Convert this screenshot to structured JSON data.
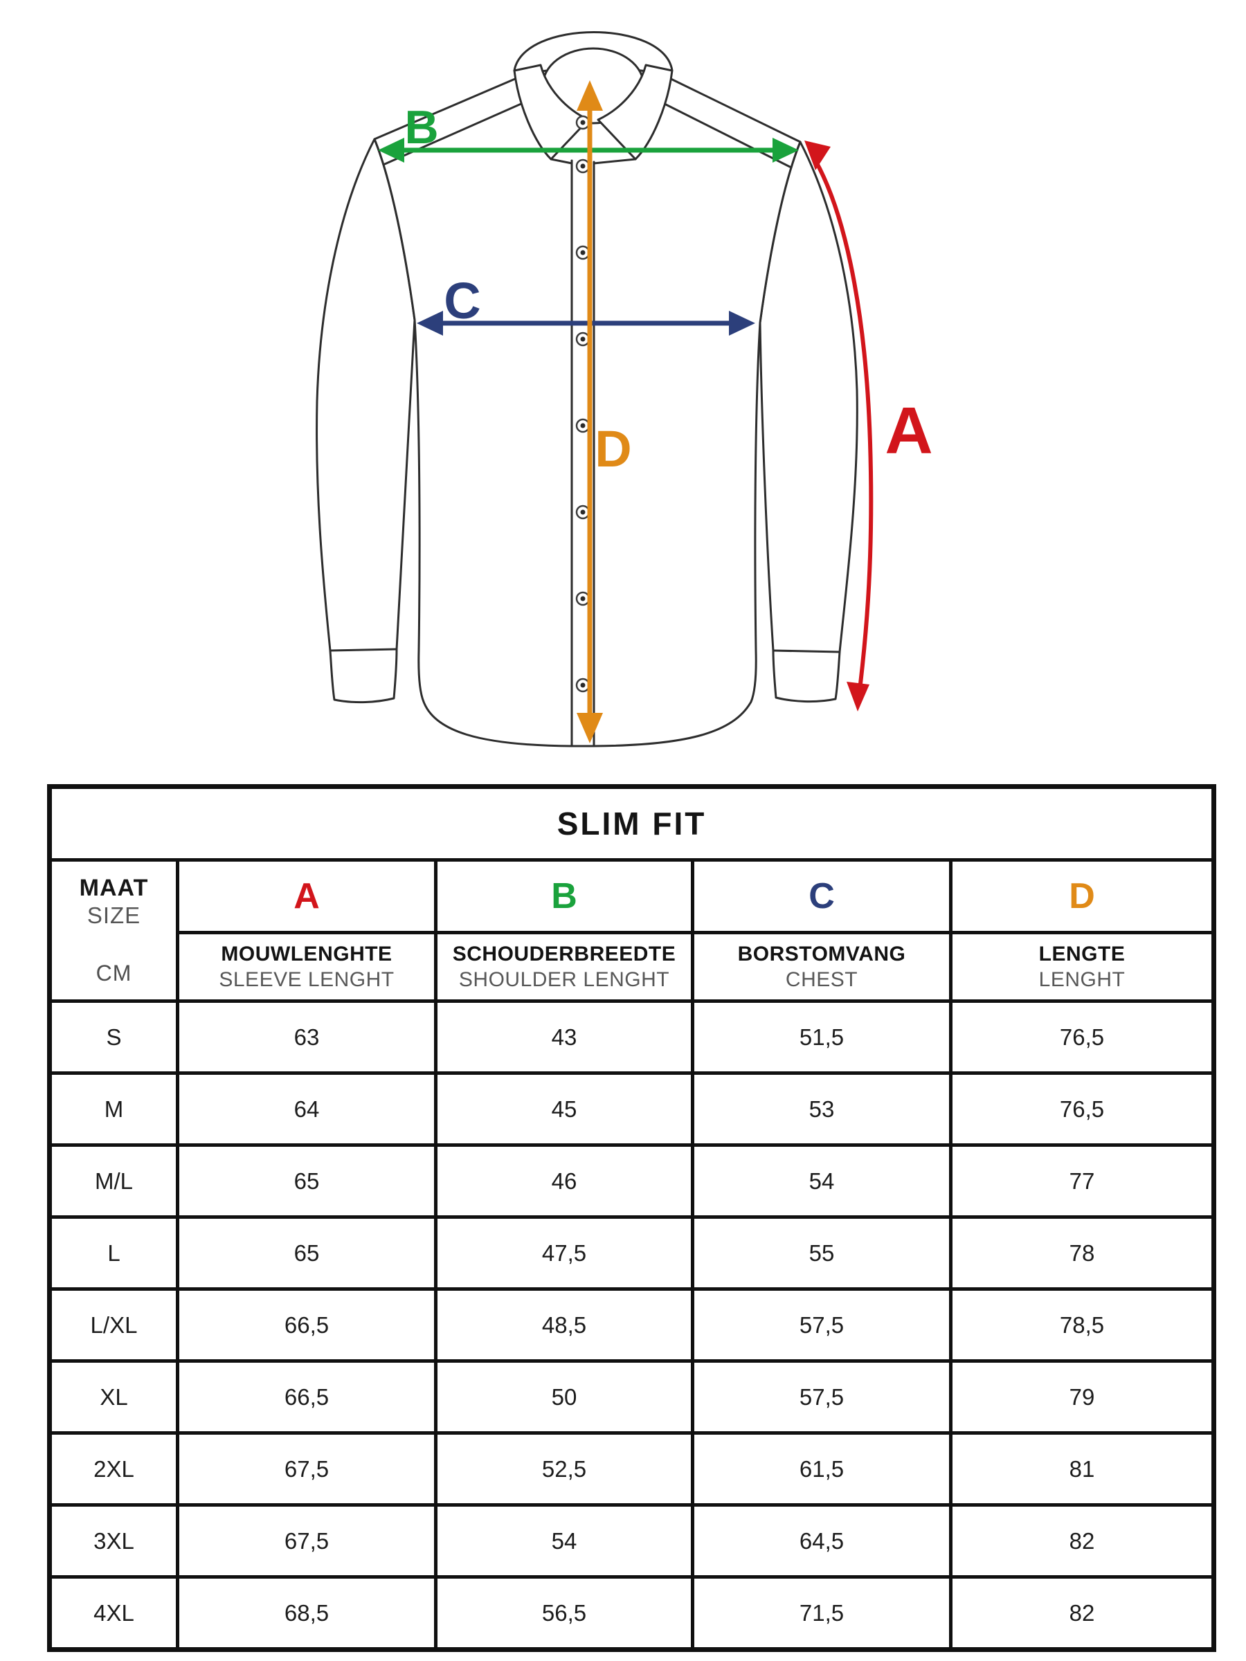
{
  "colors": {
    "red": "#d2151b",
    "green": "#1aa23c",
    "navy": "#2c3f7b",
    "orange": "#e08a17"
  },
  "diagram": {
    "labels": {
      "a": "A",
      "b": "B",
      "c": "C",
      "d": "D"
    }
  },
  "table": {
    "title": "SLIM FIT",
    "size_header": {
      "line1": "MAAT",
      "line2": "SIZE",
      "unit": "CM"
    },
    "columns": [
      {
        "letter": "A",
        "name_nl": "MOUWLENGHTE",
        "name_en": "SLEEVE LENGHT"
      },
      {
        "letter": "B",
        "name_nl": "SCHOUDERBREEDTE",
        "name_en": "SHOULDER LENGHT"
      },
      {
        "letter": "C",
        "name_nl": "BORSTOMVANG",
        "name_en": "CHEST"
      },
      {
        "letter": "D",
        "name_nl": "LENGTE",
        "name_en": "LENGHT"
      }
    ],
    "rows": [
      {
        "size": "S",
        "values": [
          "63",
          "43",
          "51,5",
          "76,5"
        ]
      },
      {
        "size": "M",
        "values": [
          "64",
          "45",
          "53",
          "76,5"
        ]
      },
      {
        "size": "M/L",
        "values": [
          "65",
          "46",
          "54",
          "77"
        ]
      },
      {
        "size": "L",
        "values": [
          "65",
          "47,5",
          "55",
          "78"
        ]
      },
      {
        "size": "L/XL",
        "values": [
          "66,5",
          "48,5",
          "57,5",
          "78,5"
        ]
      },
      {
        "size": "XL",
        "values": [
          "66,5",
          "50",
          "57,5",
          "79"
        ]
      },
      {
        "size": "2XL",
        "values": [
          "67,5",
          "52,5",
          "61,5",
          "81"
        ]
      },
      {
        "size": "3XL",
        "values": [
          "67,5",
          "54",
          "64,5",
          "82"
        ]
      },
      {
        "size": "4XL",
        "values": [
          "68,5",
          "56,5",
          "71,5",
          "82"
        ]
      }
    ]
  }
}
